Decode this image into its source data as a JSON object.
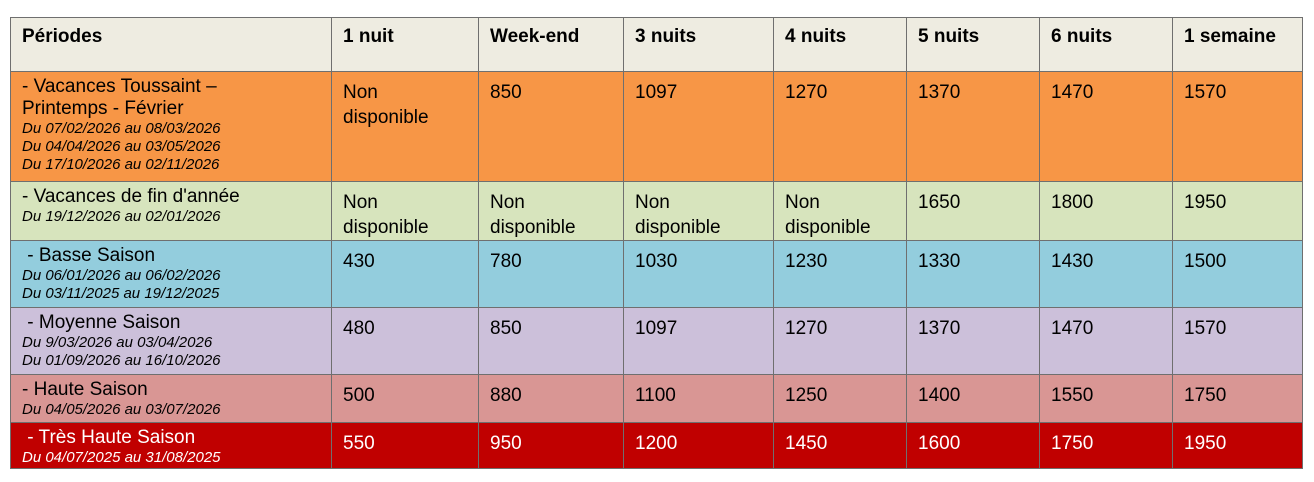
{
  "table": {
    "headers": [
      "Périodes",
      "1 nuit",
      "Week-end",
      "3 nuits",
      "4 nuits",
      "5 nuits",
      "6 nuits",
      "1 semaine"
    ],
    "rows": [
      {
        "period_lines": [
          "- Vacances Toussaint –",
          "Printemps - Février"
        ],
        "dates": [
          "Du 07/02/2026 au 08/03/2026",
          "Du 04/04/2026 au 03/05/2026",
          "Du 17/10/2026 au 02/11/2026"
        ],
        "cells": [
          [
            "Non",
            "disponible"
          ],
          [
            "850"
          ],
          [
            "1097"
          ],
          [
            "1270"
          ],
          [
            "1370"
          ],
          [
            "1470"
          ],
          [
            "1570"
          ]
        ],
        "bg": "#f79646"
      },
      {
        "period_lines": [
          "- Vacances de fin d'année"
        ],
        "dates": [
          "Du 19/12/2026 au 02/01/2026"
        ],
        "cells": [
          [
            "Non",
            "disponible"
          ],
          [
            "Non",
            "disponible"
          ],
          [
            "Non",
            "disponible"
          ],
          [
            "Non",
            "disponible"
          ],
          [
            "1650"
          ],
          [
            "1800"
          ],
          [
            "1950"
          ]
        ],
        "bg": "#d7e4bd"
      },
      {
        "period_lines": [
          " - Basse Saison"
        ],
        "dates": [
          "Du 06/01/2026 au 06/02/2026",
          "Du 03/11/2025 au 19/12/2025"
        ],
        "cells": [
          [
            "430"
          ],
          [
            "780"
          ],
          [
            "1030"
          ],
          [
            "1230"
          ],
          [
            "1330"
          ],
          [
            "1430"
          ],
          [
            "1500"
          ]
        ],
        "bg": "#93cddd"
      },
      {
        "period_lines": [
          " - Moyenne Saison"
        ],
        "dates": [
          "Du 9/03/2026 au 03/04/2026",
          "Du 01/09/2026 au 16/10/2026"
        ],
        "cells": [
          [
            "480"
          ],
          [
            "850"
          ],
          [
            "1097"
          ],
          [
            "1270"
          ],
          [
            "1370"
          ],
          [
            "1470"
          ],
          [
            "1570"
          ]
        ],
        "bg": "#ccc0da"
      },
      {
        "period_lines": [
          "- Haute Saison"
        ],
        "dates": [
          "Du 04/05/2026 au 03/07/2026"
        ],
        "cells": [
          [
            "500"
          ],
          [
            "880"
          ],
          [
            "1100"
          ],
          [
            "1250"
          ],
          [
            "1400"
          ],
          [
            "1550"
          ],
          [
            "1750"
          ]
        ],
        "bg": "#d99694"
      },
      {
        "period_lines": [
          " - Très Haute Saison"
        ],
        "dates": [
          "Du 04/07/2025 au 31/08/2025"
        ],
        "cells": [
          [
            "550"
          ],
          [
            "950"
          ],
          [
            "1200"
          ],
          [
            "1450"
          ],
          [
            "1600"
          ],
          [
            "1750"
          ],
          [
            "1950"
          ]
        ],
        "bg": "#c00000",
        "text_color": "#ffffff"
      }
    ]
  }
}
